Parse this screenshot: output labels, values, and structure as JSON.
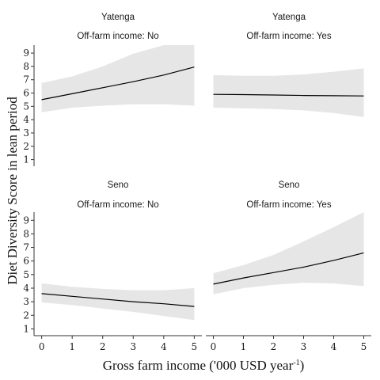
{
  "chart_data": {
    "type": "line",
    "x_label": "Gross farm income ('000 USD year",
    "x_label_sup": "-1",
    "x_label_close": ")",
    "y_label": "Diet Diversity Score in lean period",
    "x_ticks": [
      0,
      1,
      2,
      3,
      4,
      5
    ],
    "x_tick_labels": [
      "0",
      "1",
      "2",
      "3",
      "4",
      "5"
    ],
    "y_ticks": [
      1,
      2,
      3,
      4,
      5,
      6,
      7,
      8,
      9
    ],
    "y_tick_labels": [
      "1",
      "2",
      "3",
      "4",
      "5",
      "6",
      "7",
      "8",
      "9"
    ],
    "xlim": [
      -0.25,
      5.25
    ],
    "ylim": [
      0.5,
      9.6
    ],
    "colors": {
      "line": "#000000",
      "ribbon": "#e6e6e6",
      "axis": "#333333"
    },
    "panels": [
      {
        "region": "Yatenga",
        "condition": "Off-farm income: No",
        "x": [
          0,
          1,
          2,
          3,
          4,
          5
        ],
        "fit": [
          5.5,
          5.95,
          6.4,
          6.85,
          7.35,
          7.95
        ],
        "lower": [
          4.55,
          4.9,
          5.05,
          5.15,
          5.15,
          5.05
        ],
        "upper": [
          6.75,
          7.25,
          8.0,
          8.95,
          9.6,
          9.6
        ]
      },
      {
        "region": "Yatenga",
        "condition": "Off-farm income: Yes",
        "x": [
          0,
          1,
          2,
          3,
          4,
          5
        ],
        "fit": [
          5.9,
          5.88,
          5.85,
          5.82,
          5.8,
          5.78
        ],
        "lower": [
          4.9,
          4.85,
          4.8,
          4.7,
          4.5,
          4.2
        ],
        "upper": [
          7.35,
          7.3,
          7.3,
          7.4,
          7.6,
          7.85
        ]
      },
      {
        "region": "Seno",
        "condition": "Off-farm income: No",
        "x": [
          0,
          1,
          2,
          3,
          4,
          5
        ],
        "fit": [
          3.6,
          3.4,
          3.2,
          3.0,
          2.85,
          2.65
        ],
        "lower": [
          2.95,
          2.75,
          2.5,
          2.25,
          1.95,
          1.65
        ],
        "upper": [
          4.35,
          4.1,
          3.95,
          3.85,
          3.85,
          4.0
        ]
      },
      {
        "region": "Seno",
        "condition": "Off-farm income: Yes",
        "x": [
          0,
          1,
          2,
          3,
          4,
          5
        ],
        "fit": [
          4.3,
          4.75,
          5.15,
          5.55,
          6.05,
          6.6
        ],
        "lower": [
          3.55,
          4.0,
          4.25,
          4.4,
          4.35,
          4.15
        ],
        "upper": [
          5.1,
          5.7,
          6.45,
          7.45,
          8.5,
          9.6
        ]
      }
    ]
  }
}
